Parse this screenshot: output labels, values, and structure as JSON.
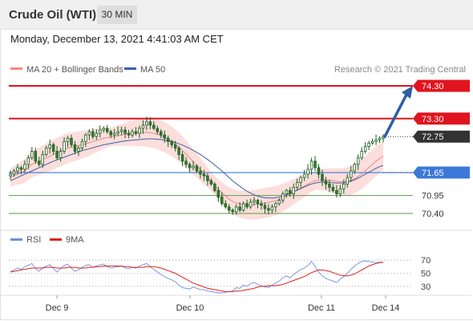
{
  "header": {
    "instrument": "Crude Oil (WTI)",
    "timeframe": "30 MIN",
    "datetime": "Monday, December 13, 2021 4:41:03 AM CET"
  },
  "legend": {
    "ma20": "MA 20 + Bollinger Bands",
    "ma50": "MA 50",
    "copyright": "Research © 2021 Trading Central",
    "rsi": "RSI",
    "rsi_ma": "9MA"
  },
  "colors": {
    "resistance": "#e0141e",
    "support_line": "#5a9e4a",
    "pivot": "#3c78d8",
    "current": "#333333",
    "candle_up": "#2e7d32",
    "candle_down": "#2e7d32",
    "bollinger_fill": "#fbd3d0",
    "ma20": "#e88a85",
    "ma50": "#3f5fa8",
    "rsi": "#6f8fd8",
    "rsi_ma": "#dd2222",
    "arrow": "#2e5fa6"
  },
  "chart_data": [
    {
      "type": "candlestick",
      "title": "Crude Oil (WTI)",
      "y_range": [
        70.0,
        74.5
      ],
      "x_tick_labels": [
        "Dec 9",
        "Dec 10",
        "Dec 11",
        "Dec 14"
      ],
      "levels": [
        {
          "label": "74.30",
          "value": 74.3,
          "kind": "resistance",
          "style": "badge-red"
        },
        {
          "label": "73.30",
          "value": 73.3,
          "kind": "resistance",
          "style": "badge-red"
        },
        {
          "label": "72.75",
          "value": 72.75,
          "kind": "last",
          "style": "badge-dark"
        },
        {
          "label": "71.65",
          "value": 71.65,
          "kind": "pivot",
          "style": "badge-blue"
        },
        {
          "label": "70.95",
          "value": 70.95,
          "kind": "support",
          "style": "text-green"
        },
        {
          "label": "70.40",
          "value": 70.4,
          "kind": "support",
          "style": "text-green"
        }
      ],
      "close": [
        71.6,
        71.7,
        71.8,
        71.75,
        71.9,
        72.1,
        72.3,
        72.0,
        71.9,
        72.2,
        72.4,
        72.5,
        72.3,
        72.1,
        72.3,
        72.6,
        72.7,
        72.5,
        72.3,
        72.4,
        72.6,
        72.8,
        72.9,
        72.75,
        72.85,
        72.95,
        73.0,
        72.9,
        72.8,
        72.85,
        72.9,
        72.95,
        72.85,
        72.8,
        72.9,
        72.85,
        73.0,
        73.1,
        73.2,
        73.1,
        73.0,
        72.9,
        72.8,
        72.7,
        72.6,
        72.5,
        72.4,
        72.2,
        72.0,
        71.9,
        71.8,
        71.85,
        71.7,
        71.6,
        71.55,
        71.4,
        71.3,
        71.1,
        70.9,
        70.7,
        70.6,
        70.5,
        70.45,
        70.6,
        70.5,
        70.7,
        70.6,
        70.75,
        70.8,
        70.7,
        70.65,
        70.55,
        70.5,
        70.6,
        70.7,
        70.8,
        71.0,
        71.1,
        71.0,
        71.2,
        71.35,
        71.5,
        71.6,
        71.75,
        72.0,
        71.8,
        71.6,
        71.4,
        71.3,
        71.2,
        71.1,
        71.0,
        71.15,
        71.3,
        71.5,
        71.7,
        71.9,
        72.1,
        72.3,
        72.45,
        72.55,
        72.6,
        72.65,
        72.7,
        72.75
      ],
      "ma20": [
        71.5,
        71.55,
        71.6,
        71.65,
        71.7,
        71.8,
        71.9,
        71.95,
        72.0,
        72.05,
        72.1,
        72.15,
        72.2,
        72.25,
        72.3,
        72.35,
        72.4,
        72.42,
        72.45,
        72.48,
        72.5,
        72.53,
        72.56,
        72.6,
        72.63,
        72.66,
        72.7,
        72.72,
        72.74,
        72.76,
        72.78,
        72.8,
        72.82,
        72.84,
        72.85,
        72.86,
        72.87,
        72.88,
        72.88,
        72.87,
        72.85,
        72.82,
        72.78,
        72.73,
        72.67,
        72.6,
        72.52,
        72.43,
        72.33,
        72.22,
        72.1,
        71.98,
        71.86,
        71.74,
        71.62,
        71.5,
        71.38,
        71.26,
        71.14,
        71.03,
        70.93,
        70.84,
        70.77,
        70.72,
        70.69,
        70.67,
        70.66,
        70.66,
        70.67,
        70.68,
        70.7,
        70.72,
        70.74,
        70.76,
        70.79,
        70.83,
        70.88,
        70.94,
        71.0,
        71.06,
        71.12,
        71.18,
        71.24,
        71.3,
        71.36,
        71.4,
        71.42,
        71.43,
        71.43,
        71.42,
        71.4,
        71.38,
        71.37,
        71.37,
        71.38,
        71.41,
        71.46,
        71.53,
        71.61,
        71.7,
        71.8,
        71.9,
        72.0,
        72.08,
        72.15
      ],
      "ma50": [
        71.4,
        71.45,
        71.5,
        71.55,
        71.6,
        71.65,
        71.7,
        71.75,
        71.8,
        71.85,
        71.9,
        71.95,
        72.0,
        72.04,
        72.08,
        72.12,
        72.16,
        72.2,
        72.24,
        72.28,
        72.32,
        72.35,
        72.38,
        72.41,
        72.44,
        72.47,
        72.5,
        72.52,
        72.54,
        72.56,
        72.58,
        72.6,
        72.62,
        72.63,
        72.64,
        72.65,
        72.66,
        72.67,
        72.68,
        72.68,
        72.68,
        72.67,
        72.66,
        72.64,
        72.62,
        72.6,
        72.57,
        72.53,
        72.49,
        72.44,
        72.39,
        72.33,
        72.27,
        72.2,
        72.13,
        72.05,
        71.97,
        71.88,
        71.79,
        71.7,
        71.6,
        71.5,
        71.4,
        71.31,
        71.23,
        71.15,
        71.08,
        71.02,
        70.97,
        70.93,
        70.9,
        70.88,
        70.87,
        70.87,
        70.88,
        70.9,
        70.93,
        70.97,
        71.01,
        71.06,
        71.11,
        71.16,
        71.21,
        71.26,
        71.3,
        71.33,
        71.35,
        71.36,
        71.36,
        71.35,
        71.34,
        71.33,
        71.33,
        71.34,
        71.36,
        71.39,
        71.43,
        71.48,
        71.54,
        71.6,
        71.66,
        71.72,
        71.78,
        71.83,
        71.87
      ]
    },
    {
      "type": "line",
      "title": "RSI",
      "y_range": [
        20,
        80
      ],
      "y_tick_labels": [
        "70",
        "50",
        "30"
      ],
      "y_ticks": [
        70,
        50,
        30
      ],
      "series": [
        {
          "name": "RSI",
          "values": [
            52,
            55,
            58,
            56,
            60,
            62,
            65,
            57,
            53,
            58,
            61,
            63,
            57,
            52,
            57,
            62,
            64,
            58,
            53,
            55,
            59,
            62,
            63,
            59,
            61,
            63,
            64,
            60,
            58,
            59,
            60,
            61,
            58,
            57,
            59,
            58,
            61,
            63,
            65,
            60,
            56,
            52,
            48,
            45,
            42,
            40,
            37,
            32,
            28,
            27,
            26,
            29,
            27,
            25,
            25,
            23,
            22,
            21,
            20,
            20,
            21,
            22,
            23,
            28,
            27,
            32,
            30,
            34,
            36,
            33,
            31,
            29,
            28,
            32,
            35,
            38,
            43,
            46,
            43,
            48,
            52,
            56,
            58,
            62,
            68,
            60,
            52,
            46,
            42,
            40,
            38,
            36,
            41,
            45,
            50,
            56,
            61,
            65,
            68,
            69,
            68,
            67,
            66,
            67,
            66
          ]
        },
        {
          "name": "9MA",
          "values": [
            52,
            53,
            54,
            55,
            56,
            57,
            58,
            58,
            58,
            58,
            59,
            59,
            59,
            58,
            58,
            58,
            59,
            59,
            59,
            58,
            58,
            58,
            59,
            59,
            60,
            60,
            61,
            61,
            61,
            61,
            61,
            61,
            60,
            60,
            59,
            59,
            59,
            59,
            60,
            60,
            60,
            59,
            58,
            56,
            54,
            52,
            50,
            47,
            44,
            41,
            38,
            35,
            33,
            31,
            29,
            27,
            26,
            25,
            24,
            23,
            22,
            22,
            22,
            23,
            23,
            24,
            25,
            26,
            27,
            29,
            30,
            30,
            31,
            31,
            31,
            32,
            33,
            35,
            37,
            39,
            41,
            43,
            45,
            48,
            51,
            53,
            55,
            55,
            54,
            53,
            51,
            49,
            47,
            46,
            46,
            47,
            49,
            52,
            55,
            58,
            61,
            63,
            65,
            66,
            67
          ]
        }
      ]
    }
  ]
}
